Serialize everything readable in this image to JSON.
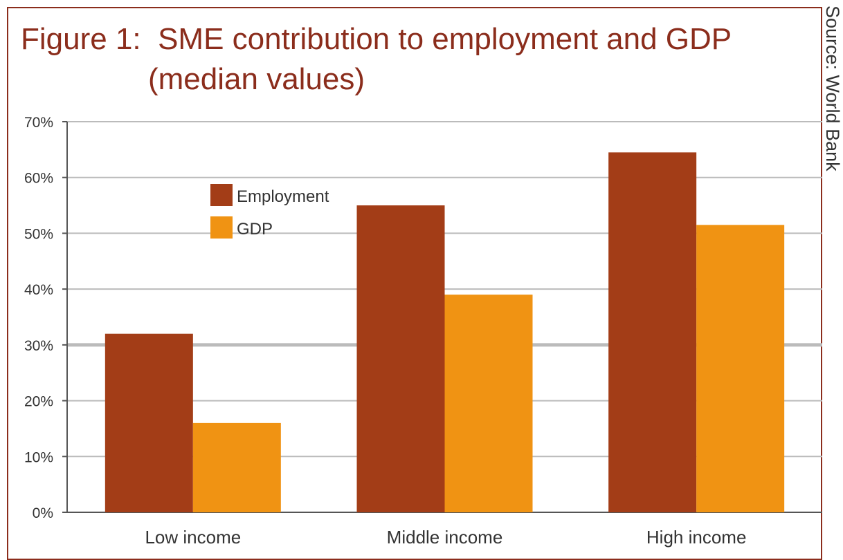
{
  "colors": {
    "employment": "#a33d17",
    "gdp": "#f09313",
    "title": "#8b2d1c",
    "grid": "#bbbbbb",
    "frame": "#8b2d1c"
  },
  "title_line1": "Figure 1:  SME contribution to employment and GDP",
  "title_line2": "(median values)",
  "source": "Source: World Bank",
  "chart_data": {
    "type": "bar",
    "title": "Figure 1:  SME contribution to employment and GDP (median values)",
    "categories": [
      "Low income",
      "Middle income",
      "High income"
    ],
    "series": [
      {
        "name": "Employment",
        "values": [
          32,
          55,
          64.5
        ]
      },
      {
        "name": "GDP",
        "values": [
          16,
          39,
          51.5
        ]
      }
    ],
    "ylim": [
      0,
      70
    ],
    "yticks": [
      0,
      10,
      20,
      30,
      40,
      50,
      60,
      70
    ],
    "ytick_labels": [
      "0%",
      "10%",
      "20%",
      "30%",
      "40%",
      "50%",
      "60%",
      "70%"
    ],
    "grid": true,
    "legend": "top-left inside plot",
    "source": "Source: World Bank"
  }
}
